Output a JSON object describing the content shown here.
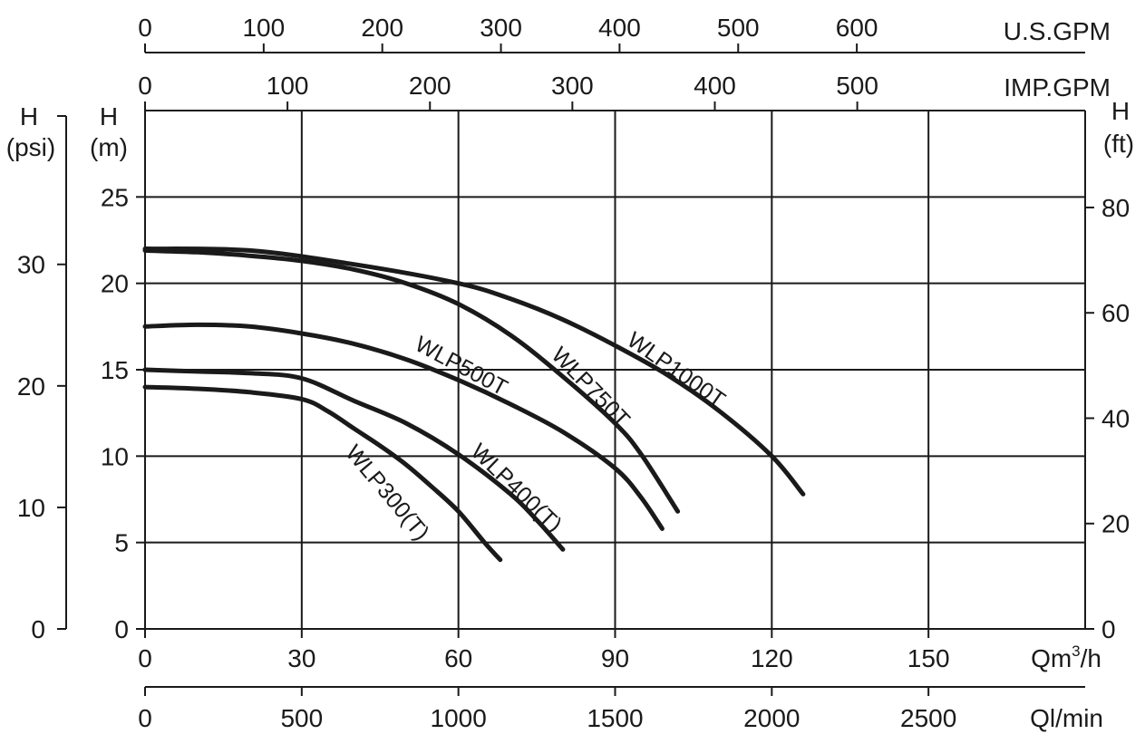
{
  "chart_data": {
    "type": "line",
    "title": "",
    "x_axis": {
      "label": "Qm",
      "label_sup": "3",
      "label_suffix": "/h",
      "range": [
        0,
        180
      ],
      "ticks": [
        0,
        30,
        60,
        90,
        120,
        150
      ]
    },
    "x_axis_secondary": {
      "label": "Ql/min",
      "range": [
        0,
        3000
      ],
      "ticks": [
        0,
        500,
        1000,
        1500,
        2000,
        2500
      ]
    },
    "top_axis_us": {
      "label": "U.S.GPM",
      "range": [
        0,
        792.5
      ],
      "ticks": [
        0,
        100,
        200,
        300,
        400,
        500,
        600
      ]
    },
    "top_axis_imp": {
      "label": "IMP.GPM",
      "range": [
        0,
        660
      ],
      "ticks": [
        0,
        100,
        200,
        300,
        400,
        500
      ]
    },
    "y_axis": {
      "label_line1": "H",
      "label_line2": "(m)",
      "range": [
        0,
        30
      ],
      "ticks": [
        0,
        5,
        10,
        15,
        20,
        25
      ]
    },
    "y_axis_psi": {
      "label_line1": "H",
      "label_line2": "(psi)",
      "range": [
        0,
        42.66
      ],
      "ticks": [
        0,
        10,
        20,
        30
      ]
    },
    "y_axis_ft": {
      "label_line1": "H",
      "label_line2": "(ft)",
      "range": [
        0,
        98.4
      ],
      "ticks": [
        0,
        20,
        40,
        60,
        80
      ]
    },
    "grid": true,
    "series": [
      {
        "name": "WLP300(T)",
        "x": [
          0,
          10,
          20,
          30,
          35,
          40,
          45,
          50,
          55,
          60,
          65,
          68
        ],
        "y": [
          14,
          13.9,
          13.7,
          13.3,
          12.6,
          11.6,
          10.6,
          9.5,
          8.2,
          6.8,
          5.0,
          4.0
        ]
      },
      {
        "name": "WLP400(T)",
        "x": [
          0,
          10,
          20,
          30,
          40,
          50,
          60,
          70,
          75,
          80
        ],
        "y": [
          15,
          14.9,
          14.8,
          14.5,
          13.2,
          11.9,
          10.1,
          7.8,
          6.3,
          4.6
        ]
      },
      {
        "name": "WLP500T",
        "x": [
          0,
          10,
          20,
          30,
          40,
          50,
          60,
          70,
          80,
          90,
          95,
          99
        ],
        "y": [
          17.5,
          17.6,
          17.5,
          17.1,
          16.5,
          15.6,
          14.4,
          13.0,
          11.4,
          9.3,
          7.6,
          5.8
        ]
      },
      {
        "name": "WLP750T",
        "x": [
          0,
          10,
          20,
          30,
          40,
          50,
          60,
          70,
          80,
          90,
          95,
          102
        ],
        "y": [
          21.9,
          21.8,
          21.6,
          21.3,
          20.8,
          20.0,
          18.8,
          17.0,
          14.6,
          11.9,
          10.1,
          6.8
        ]
      },
      {
        "name": "WLP1000T",
        "x": [
          0,
          20,
          40,
          60,
          70,
          80,
          90,
          100,
          110,
          120,
          126
        ],
        "y": [
          22.0,
          21.9,
          21.1,
          20.0,
          19.1,
          17.9,
          16.4,
          14.7,
          12.6,
          10.0,
          7.8
        ]
      }
    ]
  }
}
